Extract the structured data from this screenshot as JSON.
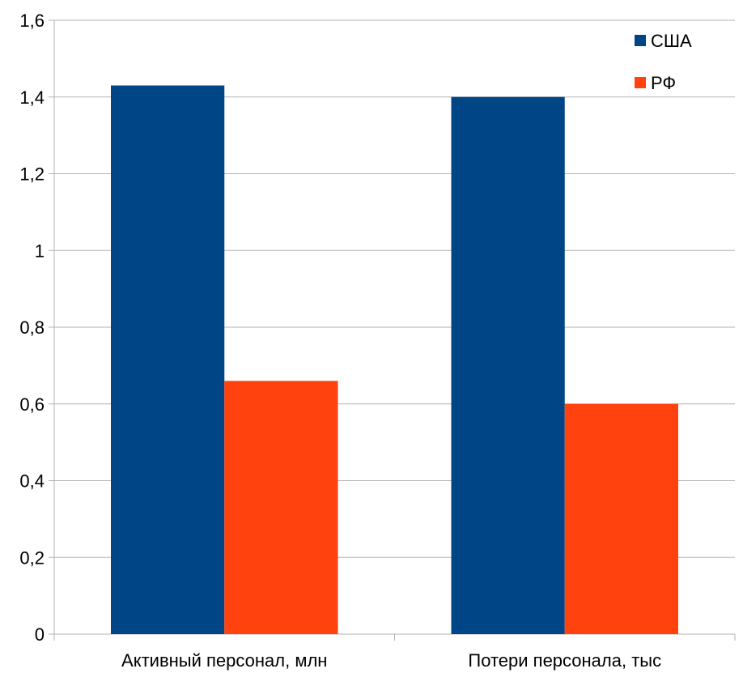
{
  "chart_data": {
    "type": "bar",
    "categories": [
      "Активный персонал, млн",
      "Потери персонала, тыс"
    ],
    "series": [
      {
        "name": "США",
        "values": [
          1.43,
          1.4
        ],
        "color": "#004586"
      },
      {
        "name": "РФ",
        "values": [
          0.66,
          0.6
        ],
        "color": "#ff420e"
      }
    ],
    "ylim": [
      0,
      1.6
    ],
    "yticks": [
      0,
      0.2,
      0.4,
      0.6,
      0.8,
      1,
      1.2,
      1.4,
      1.6
    ],
    "ytick_labels": [
      "0",
      "0,2",
      "0,4",
      "0,6",
      "0,8",
      "1",
      "1,2",
      "1,4",
      "1,6"
    ],
    "grid": true,
    "legend_position": "top-right",
    "title": "",
    "xlabel": "",
    "ylabel": ""
  },
  "colors": {
    "grid": "#b3b3b3",
    "axis": "#b3b3b3"
  }
}
